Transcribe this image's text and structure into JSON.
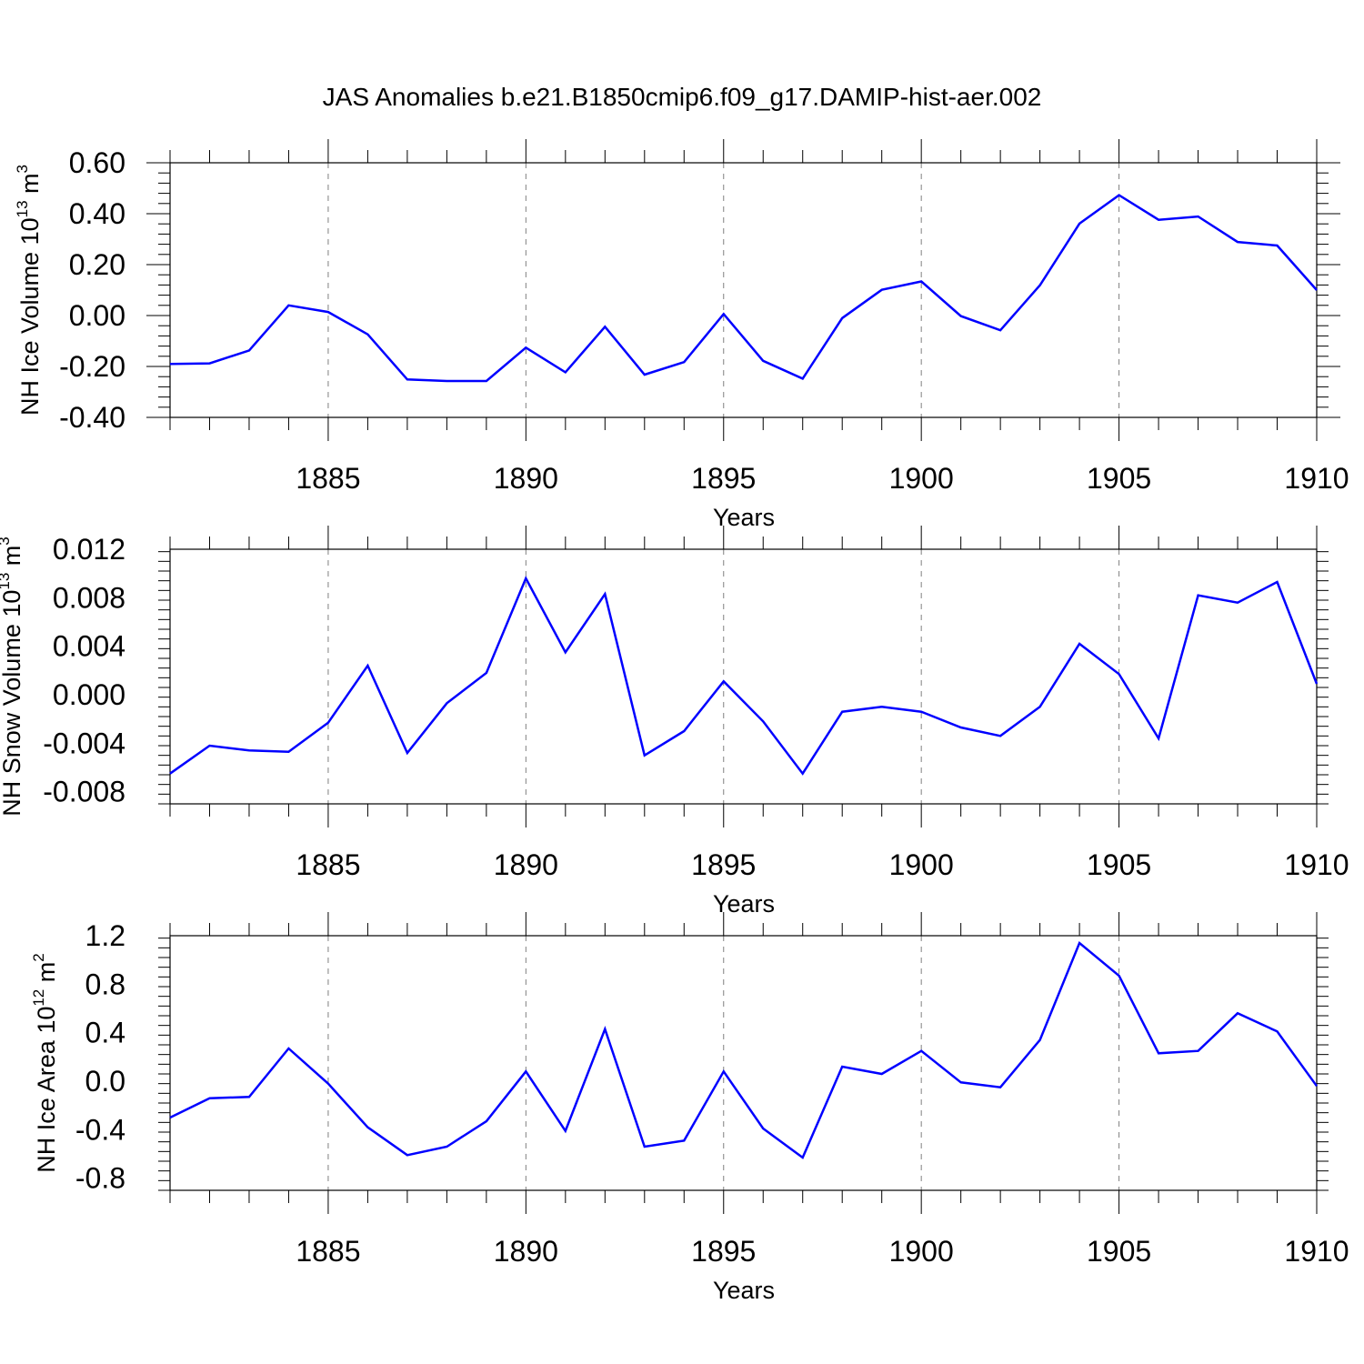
{
  "chart_data": [
    {
      "type": "line",
      "title": "JAS Anomalies b.e21.B1850cmip6.f09_g17.DAMIP-hist-aer.002",
      "xlabel": "Years",
      "ylabel_base": "NH Ice Volume 10",
      "ylabel_exp": "13",
      "ylabel_unit": " m",
      "ylabel_unit_exp": "3",
      "xlim": [
        1881,
        1910
      ],
      "ylim": [
        -0.4,
        0.6
      ],
      "yticks": [
        -0.4,
        -0.2,
        0.0,
        0.2,
        0.4,
        0.6
      ],
      "ytick_labels": [
        "-0.40",
        "-0.20",
        "0.00",
        "0.20",
        "0.40",
        "0.60"
      ],
      "xticks": [
        1885,
        1890,
        1895,
        1900,
        1905,
        1910
      ],
      "xtick_labels": [
        "1885",
        "1890",
        "1895",
        "1900",
        "1905",
        "1910"
      ],
      "color": "#0000ff",
      "x": [
        1881,
        1882,
        1883,
        1884,
        1885,
        1886,
        1887,
        1888,
        1889,
        1890,
        1891,
        1892,
        1893,
        1894,
        1895,
        1896,
        1897,
        1898,
        1899,
        1900,
        1901,
        1902,
        1903,
        1904,
        1905,
        1906,
        1907,
        1908,
        1909,
        1910
      ],
      "y": [
        -0.19,
        -0.188,
        -0.137,
        0.04,
        0.014,
        -0.074,
        -0.251,
        -0.257,
        -0.257,
        -0.126,
        -0.223,
        -0.044,
        -0.232,
        -0.183,
        0.006,
        -0.178,
        -0.248,
        -0.01,
        0.101,
        0.134,
        -0.002,
        -0.058,
        0.119,
        0.361,
        0.473,
        0.376,
        0.389,
        0.289,
        0.275,
        0.1
      ]
    },
    {
      "type": "line",
      "title": "",
      "xlabel": "Years",
      "ylabel_base": "NH Snow Volume 10",
      "ylabel_exp": "13",
      "ylabel_unit": " m",
      "ylabel_unit_exp": "3",
      "xlim": [
        1881,
        1910
      ],
      "ylim": [
        -0.009,
        0.012
      ],
      "yticks": [
        -0.008,
        -0.004,
        0.0,
        0.004,
        0.008,
        0.012
      ],
      "ytick_labels": [
        "-0.008",
        "-0.004",
        "0.000",
        "0.004",
        "0.008",
        "0.012"
      ],
      "xticks": [
        1885,
        1890,
        1895,
        1900,
        1905,
        1910
      ],
      "xtick_labels": [
        "1885",
        "1890",
        "1895",
        "1900",
        "1905",
        "1910"
      ],
      "color": "#0000ff",
      "x": [
        1881,
        1882,
        1883,
        1884,
        1885,
        1886,
        1887,
        1888,
        1889,
        1890,
        1891,
        1892,
        1893,
        1894,
        1895,
        1896,
        1897,
        1898,
        1899,
        1900,
        1901,
        1902,
        1903,
        1904,
        1905,
        1906,
        1907,
        1908,
        1909,
        1910
      ],
      "y": [
        -0.0065,
        -0.0042,
        -0.0046,
        -0.0047,
        -0.0023,
        0.0024,
        -0.0048,
        -0.0007,
        0.0018,
        0.0096,
        0.0035,
        0.0083,
        -0.005,
        -0.003,
        0.0011,
        -0.0022,
        -0.0065,
        -0.0014,
        -0.001,
        -0.0014,
        -0.0027,
        -0.0034,
        -0.001,
        0.0042,
        0.0017,
        -0.0036,
        0.0082,
        0.0076,
        0.0093,
        0.0009
      ]
    },
    {
      "type": "line",
      "title": "",
      "xlabel": "Years",
      "ylabel_base": "NH Ice Area 10",
      "ylabel_exp": "12",
      "ylabel_unit": " m",
      "ylabel_unit_exp": "2",
      "xlim": [
        1881,
        1910
      ],
      "ylim": [
        -0.9,
        1.2
      ],
      "yticks": [
        -0.8,
        -0.4,
        0.0,
        0.4,
        0.8,
        1.2
      ],
      "ytick_labels": [
        "-0.8",
        "-0.4",
        "0.0",
        "0.4",
        "0.8",
        "1.2"
      ],
      "xticks": [
        1885,
        1890,
        1895,
        1900,
        1905,
        1910
      ],
      "xtick_labels": [
        "1885",
        "1890",
        "1895",
        "1900",
        "1905",
        "1910"
      ],
      "color": "#0000ff",
      "x": [
        1881,
        1882,
        1883,
        1884,
        1885,
        1886,
        1887,
        1888,
        1889,
        1890,
        1891,
        1892,
        1893,
        1894,
        1895,
        1896,
        1897,
        1898,
        1899,
        1900,
        1901,
        1902,
        1903,
        1904,
        1905,
        1906,
        1907,
        1908,
        1909,
        1910
      ],
      "y": [
        -0.3,
        -0.14,
        -0.13,
        0.27,
        -0.02,
        -0.38,
        -0.61,
        -0.54,
        -0.33,
        0.08,
        -0.41,
        0.43,
        -0.54,
        -0.49,
        0.08,
        -0.39,
        -0.63,
        0.12,
        0.06,
        0.25,
        -0.01,
        -0.05,
        0.34,
        1.14,
        0.87,
        0.23,
        0.25,
        0.56,
        0.41,
        -0.04
      ]
    }
  ]
}
